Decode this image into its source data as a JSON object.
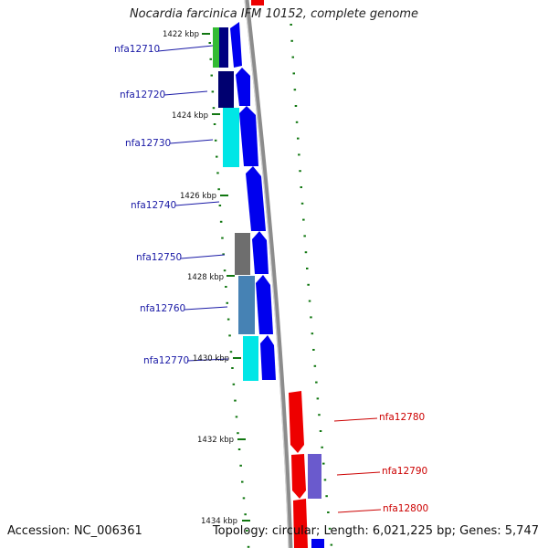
{
  "title": "Nocardia farcinica IFM 10152, complete genome",
  "footer": {
    "accession": "Accession: NC_006361",
    "summary": "Topology: circular; Length: 6,021,225 bp; Genes: 5,747"
  },
  "ticks": [
    "1422 kbp",
    "1424 kbp",
    "1426 kbp",
    "1428 kbp",
    "1430 kbp",
    "1432 kbp",
    "1434 kbp"
  ],
  "genes_left": [
    "nfa12710",
    "nfa12720",
    "nfa12730",
    "nfa12740",
    "nfa12750",
    "nfa12760",
    "nfa12770"
  ],
  "genes_right": [
    "nfa12780",
    "nfa12790",
    "nfa12800"
  ],
  "colors": {
    "backbone": "#8c8c8c",
    "forward_gene": "#0000ee",
    "reverse_gene": "#ee0000",
    "tick": "#117711",
    "label_blue": "#1a1aa6",
    "label_red": "#cc0000"
  }
}
